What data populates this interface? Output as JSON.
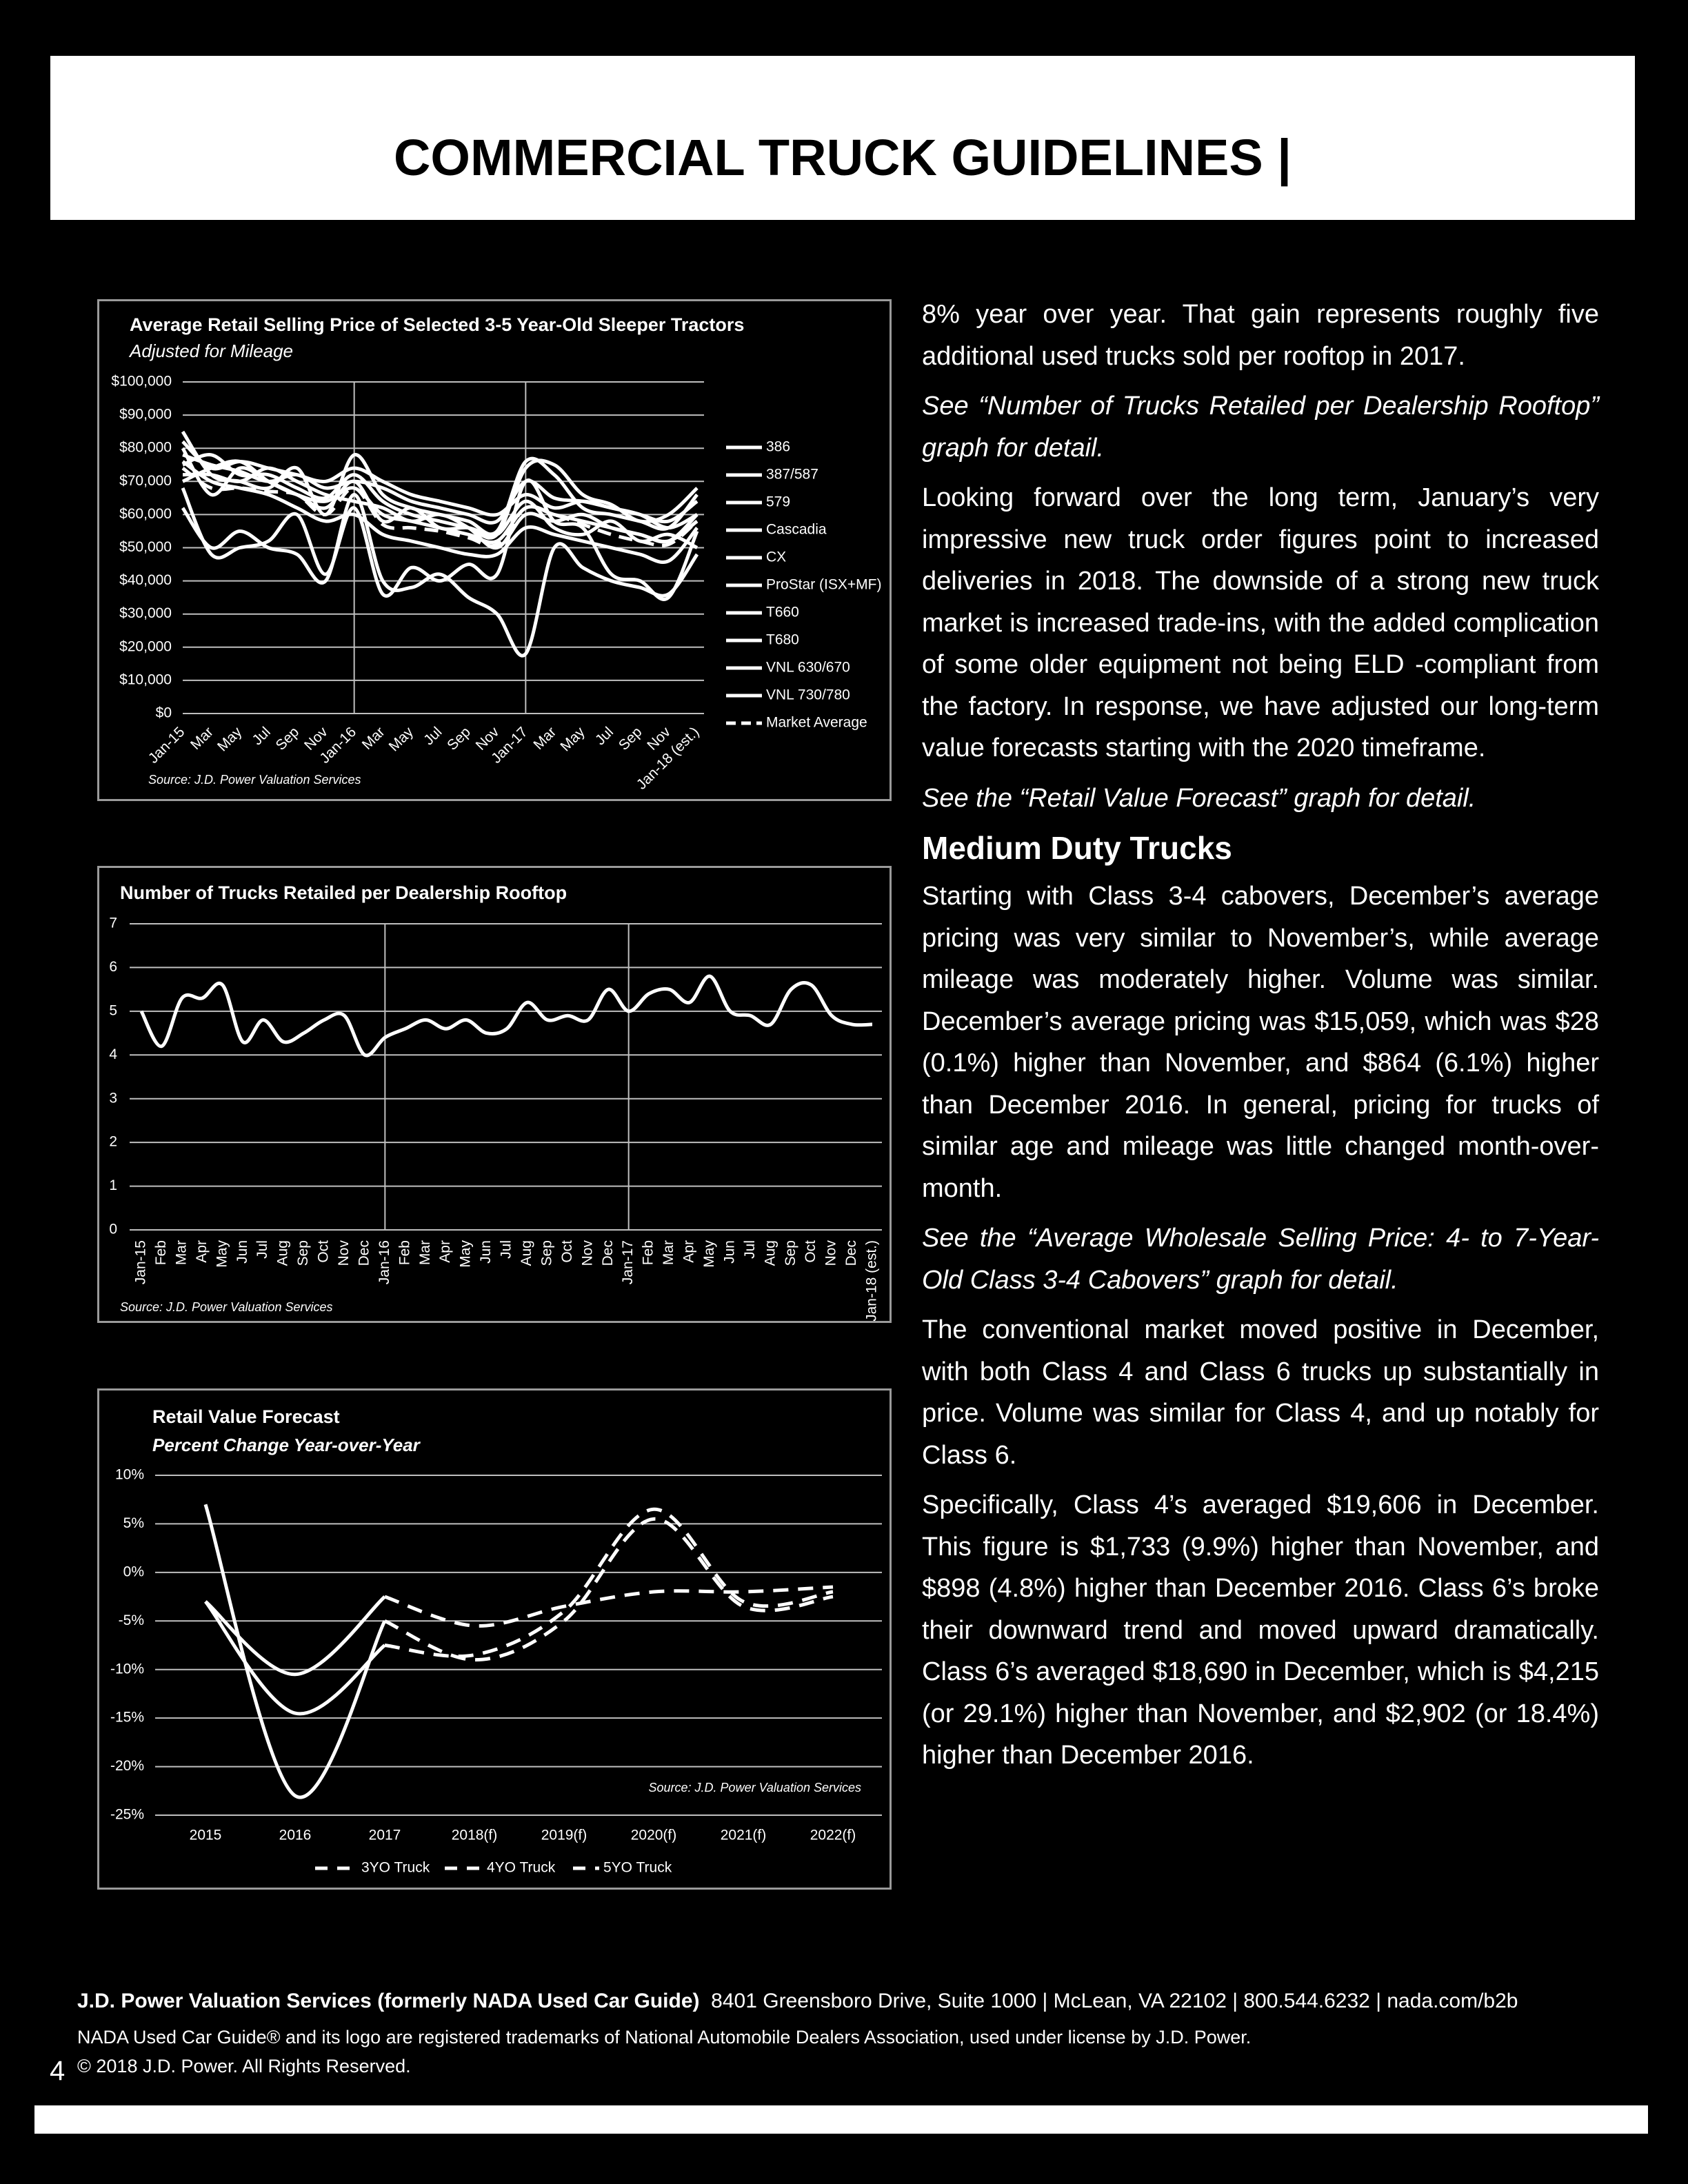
{
  "header": {
    "title": "COMMERCIAL TRUCK GUIDELINES |"
  },
  "chart_data": [
    {
      "type": "line",
      "title": "Average Retail Selling Price of Selected 3-5 Year-Old Sleeper Tractors",
      "subtitle": "Adjusted for Mileage",
      "source": "Source: J.D. Power Valuation Services",
      "categories": [
        "Jan-15",
        "Mar",
        "May",
        "Jul",
        "Sep",
        "Nov",
        "Jan-16",
        "Mar",
        "May",
        "Jul",
        "Sep",
        "Nov",
        "Jan-17",
        "Mar",
        "May",
        "Jul",
        "Sep",
        "Nov",
        "Jan-18 (est.)"
      ],
      "ylim": [
        0,
        100000
      ],
      "yticks": [
        {
          "value": 0,
          "label": "$0"
        },
        {
          "value": 10000,
          "label": "$10,000"
        },
        {
          "value": 20000,
          "label": "$20,000"
        },
        {
          "value": 30000,
          "label": "$30,000"
        },
        {
          "value": 40000,
          "label": "$40,000"
        },
        {
          "value": 50000,
          "label": "$50,000"
        },
        {
          "value": 60000,
          "label": "$60,000"
        },
        {
          "value": 70000,
          "label": "$70,000"
        },
        {
          "value": 80000,
          "label": "$80,000"
        },
        {
          "value": 90000,
          "label": "$90,000"
        },
        {
          "value": 100000,
          "label": "$100,000"
        }
      ],
      "grid": true,
      "legend": "right",
      "series": [
        {
          "name": "386",
          "color": "#ffffff",
          "values": [
            85000,
            72000,
            70000,
            68000,
            74000,
            60000,
            78000,
            66000,
            62000,
            60000,
            58000,
            55000,
            76000,
            72000,
            62000,
            60000,
            58000,
            56000,
            66000
          ]
        },
        {
          "name": "387/587",
          "color": "#ffffff",
          "values": [
            78000,
            75000,
            73000,
            70000,
            72000,
            68000,
            70000,
            68000,
            64000,
            62000,
            60000,
            58000,
            70000,
            65000,
            64000,
            62000,
            60000,
            56000,
            60000
          ]
        },
        {
          "name": "579",
          "color": "#ffffff",
          "values": [
            75000,
            78000,
            72000,
            72000,
            68000,
            65000,
            72000,
            64000,
            60000,
            58000,
            56000,
            54000,
            74000,
            75000,
            66000,
            63000,
            58000,
            60000,
            68000
          ]
        },
        {
          "name": "Cascadia",
          "color": "#ffffff",
          "values": [
            70000,
            74000,
            76000,
            70000,
            66000,
            64000,
            68000,
            60000,
            58000,
            56000,
            54000,
            52000,
            62000,
            60000,
            58000,
            56000,
            54000,
            52000,
            58000
          ]
        },
        {
          "name": "CX",
          "color": "#ffffff",
          "values": [
            62000,
            50000,
            55000,
            50000,
            48000,
            40000,
            66000,
            40000,
            38000,
            42000,
            35000,
            30000,
            18000,
            50000,
            44000,
            40000,
            38000,
            36000,
            48000
          ]
        },
        {
          "name": "ProStar (ISX+MF)",
          "color": "#ffffff",
          "values": [
            68000,
            48000,
            50000,
            52000,
            60000,
            42000,
            62000,
            36000,
            44000,
            40000,
            45000,
            42000,
            70000,
            58000,
            56000,
            42000,
            40000,
            35000,
            55000
          ]
        },
        {
          "name": "T660",
          "color": "#ffffff",
          "values": [
            80000,
            66000,
            74000,
            70000,
            66000,
            62000,
            70000,
            58000,
            62000,
            56000,
            56000,
            54000,
            64000,
            56000,
            54000,
            58000,
            52000,
            54000,
            50000
          ]
        },
        {
          "name": "T680",
          "color": "#ffffff",
          "values": [
            82000,
            74000,
            76000,
            74000,
            72000,
            70000,
            74000,
            70000,
            66000,
            64000,
            62000,
            60000,
            66000,
            62000,
            64000,
            62000,
            60000,
            58000,
            64000
          ]
        },
        {
          "name": "VNL 630/670",
          "color": "#ffffff",
          "values": [
            76000,
            70000,
            68000,
            66000,
            62000,
            58000,
            60000,
            54000,
            52000,
            50000,
            48000,
            48000,
            56000,
            54000,
            52000,
            50000,
            48000,
            46000,
            56000
          ]
        },
        {
          "name": "VNL 730/780",
          "color": "#ffffff",
          "values": [
            72000,
            72000,
            70000,
            74000,
            70000,
            66000,
            64000,
            62000,
            58000,
            60000,
            56000,
            50000,
            60000,
            58000,
            60000,
            56000,
            54000,
            52000,
            60000
          ]
        },
        {
          "name": "Market Average",
          "color": "#ffffff",
          "dashed": true,
          "values": [
            74000,
            68000,
            68000,
            67000,
            66000,
            60000,
            68000,
            57000,
            56000,
            55000,
            53000,
            51000,
            62000,
            60000,
            57000,
            54000,
            52000,
            51000,
            58000
          ]
        }
      ]
    },
    {
      "type": "line",
      "title": "Number of Trucks Retailed per Dealership Rooftop",
      "source": "Source: J.D. Power Valuation Services",
      "categories": [
        "Jan-15",
        "Feb",
        "Mar",
        "Apr",
        "May",
        "Jun",
        "Jul",
        "Aug",
        "Sep",
        "Oct",
        "Nov",
        "Dec",
        "Jan-16",
        "Feb",
        "Mar",
        "Apr",
        "May",
        "Jun",
        "Jul",
        "Aug",
        "Sep",
        "Oct",
        "Nov",
        "Dec",
        "Jan-17",
        "Feb",
        "Mar",
        "Apr",
        "May",
        "Jun",
        "Jul",
        "Aug",
        "Sep",
        "Oct",
        "Nov",
        "Dec",
        "Jan-18 (est.)"
      ],
      "values": [
        5.0,
        4.2,
        5.3,
        5.3,
        5.6,
        4.3,
        4.8,
        4.3,
        4.5,
        4.8,
        4.9,
        4.0,
        4.4,
        4.6,
        4.8,
        4.6,
        4.8,
        4.5,
        4.6,
        5.2,
        4.8,
        4.9,
        4.8,
        5.5,
        5.0,
        5.4,
        5.5,
        5.2,
        5.8,
        5.0,
        4.9,
        4.7,
        5.5,
        5.6,
        4.9,
        4.7,
        4.7
      ],
      "color": "#ffffff",
      "ylim": [
        0,
        7
      ],
      "yticks": [
        0,
        1,
        2,
        3,
        4,
        5,
        6,
        7
      ],
      "grid": true
    },
    {
      "type": "line",
      "title": "Retail Value Forecast",
      "subtitle": "Percent Change Year-over-Year",
      "source": "Source: J.D. Power Valuation Services",
      "categories": [
        "2015",
        "2016",
        "2017",
        "2018(f)",
        "2019(f)",
        "2020(f)",
        "2021(f)",
        "2022(f)"
      ],
      "ylim": [
        -25,
        10
      ],
      "yticks": [
        {
          "value": -25,
          "label": "-25%"
        },
        {
          "value": -20,
          "label": "-20%"
        },
        {
          "value": -15,
          "label": "-15%"
        },
        {
          "value": -10,
          "label": "-10%"
        },
        {
          "value": -5,
          "label": "-5%"
        },
        {
          "value": 0,
          "label": "0%"
        },
        {
          "value": 5,
          "label": "5%"
        },
        {
          "value": 10,
          "label": "10%"
        }
      ],
      "grid": true,
      "legend": "bottom",
      "series": [
        {
          "name": "3YO Truck",
          "color": "#ffffff",
          "values": [
            7,
            -23,
            -5,
            -9,
            -5,
            5.5,
            -3.5,
            -2.5
          ]
        },
        {
          "name": "4YO Truck",
          "color": "#ffffff",
          "values": [
            -3,
            -14.5,
            -7.5,
            -8.5,
            -4,
            6.5,
            -3,
            -2
          ]
        },
        {
          "name": "5YO Truck",
          "color": "#ffffff",
          "values": [
            -3,
            -10.5,
            -2.5,
            -5.5,
            -3.5,
            -2,
            -2,
            -1.5
          ]
        }
      ]
    }
  ],
  "body": {
    "p1": "8% year over year. That gain represents roughly five additional used trucks sold per rooftop in 2017.",
    "p2": "See “Number of Trucks Retailed per Dealership Rooftop” graph for detail.",
    "p3": "Looking forward over the long term, January’s very impressive new truck order figures point to increased deliveries in 2018. The downside of a strong new truck market is increased trade-ins, with the added complication of some older equipment not being ELD -compliant from the factory. In response, we have adjusted our long-term value forecasts starting with the 2020 timeframe.",
    "p4": "See the “Retail Value Forecast” graph for detail.",
    "heading": "Medium Duty Trucks",
    "p5": "Starting with Class 3-4 cabovers, December’s average pricing was very similar to November’s, while average mileage was moderately higher. Volume was similar. December’s average pricing was $15,059, which was $28 (0.1%) higher than November, and $864 (6.1%) higher than December 2016. In general, pricing for trucks of similar age and mileage was little changed month-over-month.",
    "p6": "See the “Average Wholesale Selling Price: 4- to 7-Year-Old Class 3-4 Cabovers” graph for detail.",
    "p7": "The conventional market moved positive in December, with both Class 4 and Class 6 trucks up substantially in price. Volume was similar for Class 4, and up notably for Class 6.",
    "p8": "Specifically, Class 4’s averaged $19,606 in December. This figure is $1,733 (9.9%) higher than November, and $898 (4.8%) higher than December 2016. Class 6’s broke their downward trend and moved upward dramatically. Class 6’s averaged $18,690 in December, which is $4,215 (or 29.1%) higher than November, and $2,902 (or 18.4%) higher than December 2016."
  },
  "footer": {
    "organization": "J.D. Power Valuation Services (formerly NADA Used Car Guide)",
    "address": "8401 Greensboro Drive, Suite 1000 | McLean, VA 22102 | 800.544.6232 | nada.com/b2b",
    "trademark": "NADA Used Car Guide® and its logo are registered trademarks of National Automobile Dealers Association, used under license by J.D. Power.",
    "copyright": "© 2018 J.D. Power. All Rights Reserved.",
    "page_number": "4"
  }
}
